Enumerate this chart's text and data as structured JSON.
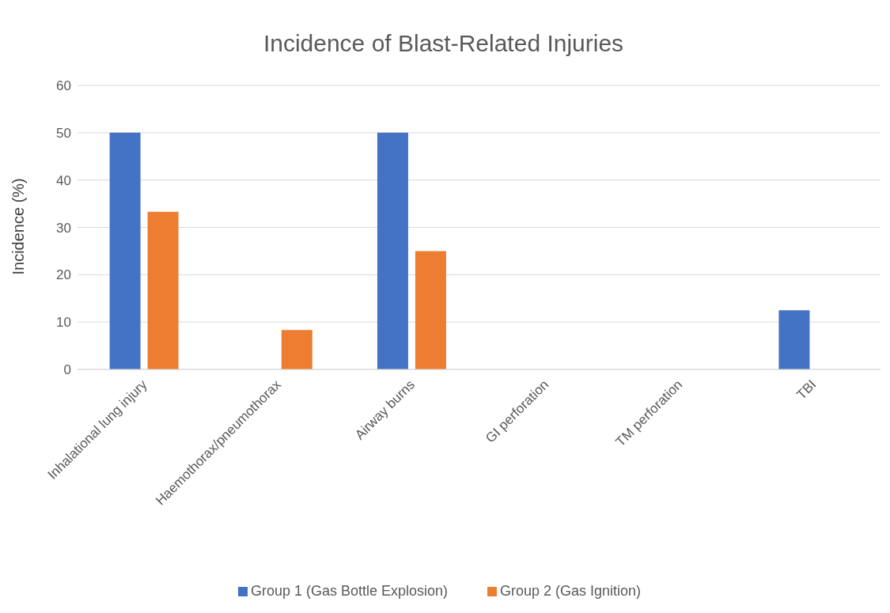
{
  "chart_data": {
    "type": "bar",
    "title": "Incidence of Blast-Related Injuries",
    "ylabel": "Incidence (%)",
    "categories": [
      "Inhalational lung injury",
      "Haemothorax/pneumothorax",
      "Airway burns",
      "GI perforation",
      "TM perforation",
      "TBI"
    ],
    "series": [
      {
        "name": "Group 1 (Gas Bottle Explosion)",
        "color": "#4472c4",
        "values": [
          50,
          0,
          50,
          0,
          0,
          12.5
        ]
      },
      {
        "name": "Group 2 (Gas Ignition)",
        "color": "#ed7d31",
        "values": [
          33.3,
          8.3,
          25,
          0,
          0,
          0
        ]
      }
    ],
    "ylim": [
      0,
      60
    ],
    "yticks": [
      0,
      10,
      20,
      30,
      40,
      50,
      60
    ],
    "grid": "y",
    "legend": "bottom"
  }
}
